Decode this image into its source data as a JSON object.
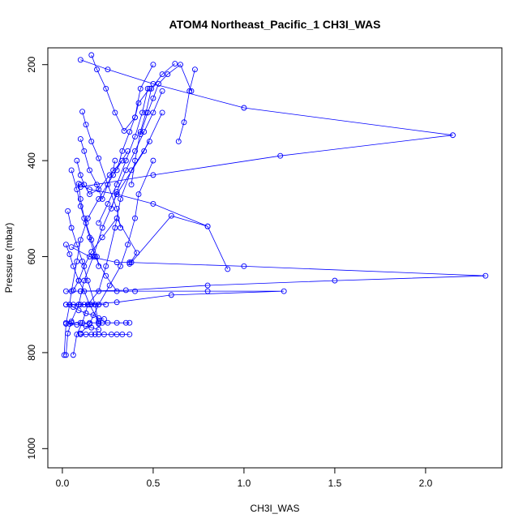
{
  "chart_data": {
    "type": "line",
    "title": "ATOM4 Northeast_Pacific_1 CH3I_WAS",
    "xlabel": "CH3I_WAS",
    "ylabel": "Pressure (mbar)",
    "xlim": [
      -0.08,
      2.42
    ],
    "ylim": [
      1040,
      165
    ],
    "y_reversed": true,
    "x_ticks": [
      0.0,
      0.5,
      1.0,
      1.5,
      2.0
    ],
    "x_tick_labels": [
      "0.0",
      "0.5",
      "1.0",
      "1.5",
      "2.0"
    ],
    "y_ticks": [
      200,
      400,
      600,
      800,
      1000
    ],
    "y_tick_labels": [
      "200",
      "400",
      "600",
      "800",
      "1000"
    ],
    "grid": false,
    "colors": {
      "series": "#0000ff"
    },
    "series": [
      {
        "x": [
          0.01,
          0.02,
          0.04,
          0.05,
          0.08,
          0.1,
          0.14,
          0.2,
          0.28,
          0.36
        ],
        "y": [
          805,
          740,
          700,
          672,
          610,
          565,
          520,
          480,
          430,
          380
        ]
      },
      {
        "x": [
          0.02,
          0.03,
          0.05,
          0.09,
          0.12,
          0.17,
          0.22,
          0.3,
          0.45,
          0.55
        ],
        "y": [
          805,
          760,
          735,
          700,
          650,
          600,
          540,
          470,
          380,
          300
        ]
      },
      {
        "x": [
          0.06,
          0.08,
          0.11,
          0.14,
          0.2,
          0.24,
          0.29,
          0.32,
          0.38,
          0.48
        ],
        "y": [
          805,
          762,
          738,
          700,
          672,
          620,
          540,
          480,
          420,
          360
        ]
      },
      {
        "x": [
          0.1,
          0.15,
          0.2,
          0.26,
          0.32,
          0.36,
          0.4,
          0.42,
          0.5
        ],
        "y": [
          760,
          740,
          700,
          660,
          620,
          575,
          520,
          470,
          400
        ]
      },
      {
        "x": [
          0.02,
          0.04,
          0.06,
          0.09,
          0.12,
          0.15,
          0.2
        ],
        "y": [
          575,
          595,
          620,
          650,
          672,
          700,
          735
        ]
      },
      {
        "x": [
          0.03,
          0.05,
          0.08,
          0.11,
          0.14,
          0.18,
          0.2
        ],
        "y": [
          505,
          540,
          575,
          610,
          650,
          700,
          740
        ]
      },
      {
        "x": [
          0.05,
          0.08,
          0.1,
          0.13,
          0.16,
          0.19,
          0.2
        ],
        "y": [
          420,
          460,
          495,
          530,
          565,
          600,
          620
        ]
      },
      {
        "x": [
          0.08,
          0.1,
          0.12,
          0.15,
          0.2,
          0.26,
          0.33
        ],
        "y": [
          400,
          430,
          450,
          470,
          460,
          430,
          400
        ]
      },
      {
        "x": [
          0.09,
          0.1,
          0.12,
          0.15,
          0.18,
          0.24,
          0.3
        ],
        "y": [
          448,
          480,
          520,
          560,
          600,
          640,
          672
        ]
      },
      {
        "x": [
          0.1,
          0.12,
          0.15,
          0.19,
          0.22,
          0.28,
          0.29
        ],
        "y": [
          355,
          380,
          420,
          450,
          480,
          420,
          400
        ]
      },
      {
        "x": [
          0.11,
          0.13,
          0.16,
          0.2,
          0.25,
          0.3,
          0.32
        ],
        "y": [
          298,
          325,
          360,
          395,
          450,
          500,
          540
        ]
      },
      {
        "x": [
          0.16,
          0.19,
          0.24,
          0.29,
          0.34,
          0.4,
          0.43,
          0.5
        ],
        "y": [
          180,
          210,
          250,
          300,
          338,
          310,
          250,
          200
        ]
      },
      {
        "x": [
          0.27,
          0.3,
          0.35,
          0.4,
          0.45,
          0.5,
          0.55
        ],
        "y": [
          500,
          465,
          420,
          380,
          340,
          300,
          255
        ]
      },
      {
        "x": [
          0.2,
          0.25,
          0.3,
          0.35,
          0.4,
          0.44,
          0.47
        ],
        "y": [
          530,
          490,
          450,
          400,
          350,
          300,
          250
        ]
      },
      {
        "x": [
          0.3,
          0.33,
          0.37,
          0.4,
          0.42,
          0.48
        ],
        "y": [
          420,
          380,
          340,
          310,
          280,
          250
        ]
      },
      {
        "x": [
          0.38,
          0.4,
          0.43,
          0.46,
          0.49,
          0.55,
          0.62
        ],
        "y": [
          450,
          400,
          340,
          300,
          250,
          220,
          198
        ]
      },
      {
        "x": [
          0.43,
          0.47,
          0.5,
          0.53,
          0.58,
          0.65,
          0.71
        ],
        "y": [
          345,
          300,
          270,
          240,
          220,
          200,
          255
        ]
      },
      {
        "x": [
          0.64,
          0.67,
          0.7,
          0.73
        ],
        "y": [
          360,
          320,
          255,
          210
        ]
      },
      {
        "x": [
          0.06,
          0.09,
          0.12,
          0.16,
          0.22,
          0.3,
          0.41,
          0.37
        ],
        "y": [
          670,
          650,
          620,
          590,
          560,
          520,
          592,
          615
        ]
      },
      {
        "x": [
          0.1,
          0.15,
          0.3,
          0.5,
          0.8,
          0.91,
          0.8,
          0.6,
          0.38
        ],
        "y": [
          450,
          460,
          470,
          490,
          537,
          626,
          537,
          515,
          612
        ]
      },
      {
        "x": [
          0.1,
          0.5,
          1.2,
          2.15,
          1.0,
          0.5,
          0.25,
          0.1
        ],
        "y": [
          455,
          430,
          390,
          347,
          290,
          240,
          210,
          190
        ]
      },
      {
        "x": [
          0.05,
          0.15,
          0.3,
          0.37,
          1.0,
          2.33,
          1.5,
          0.8,
          0.35,
          0.1
        ],
        "y": [
          580,
          600,
          612,
          612,
          620,
          640,
          650,
          660,
          670,
          672
        ]
      },
      {
        "x": [
          0.02,
          0.1,
          0.4,
          0.8,
          1.22,
          0.6,
          0.3,
          0.1,
          0.02
        ],
        "y": [
          672,
          672,
          672,
          672,
          672,
          680,
          695,
          700,
          700
        ]
      },
      {
        "x": [
          0.02,
          0.05,
          0.1,
          0.15,
          0.2,
          0.22,
          0.25,
          0.3,
          0.35,
          0.37
        ],
        "y": [
          738,
          738,
          738,
          738,
          738,
          738,
          738,
          738,
          738,
          738
        ]
      },
      {
        "x": [
          0.1,
          0.13,
          0.16,
          0.18,
          0.2,
          0.23,
          0.27,
          0.3,
          0.33,
          0.37
        ],
        "y": [
          762,
          762,
          762,
          762,
          762,
          762,
          762,
          762,
          762,
          762
        ]
      },
      {
        "x": [
          0.02,
          0.06,
          0.09,
          0.12,
          0.14,
          0.16,
          0.18,
          0.2,
          0.24
        ],
        "y": [
          700,
          700,
          700,
          700,
          700,
          700,
          700,
          700,
          700
        ]
      },
      {
        "x": [
          0.04,
          0.06,
          0.09,
          0.13,
          0.17,
          0.2,
          0.23
        ],
        "y": [
          700,
          705,
          712,
          718,
          722,
          728,
          730
        ]
      },
      {
        "x": [
          0.04,
          0.08,
          0.13,
          0.16,
          0.2
        ],
        "y": [
          740,
          742,
          745,
          748,
          752
        ]
      }
    ]
  }
}
